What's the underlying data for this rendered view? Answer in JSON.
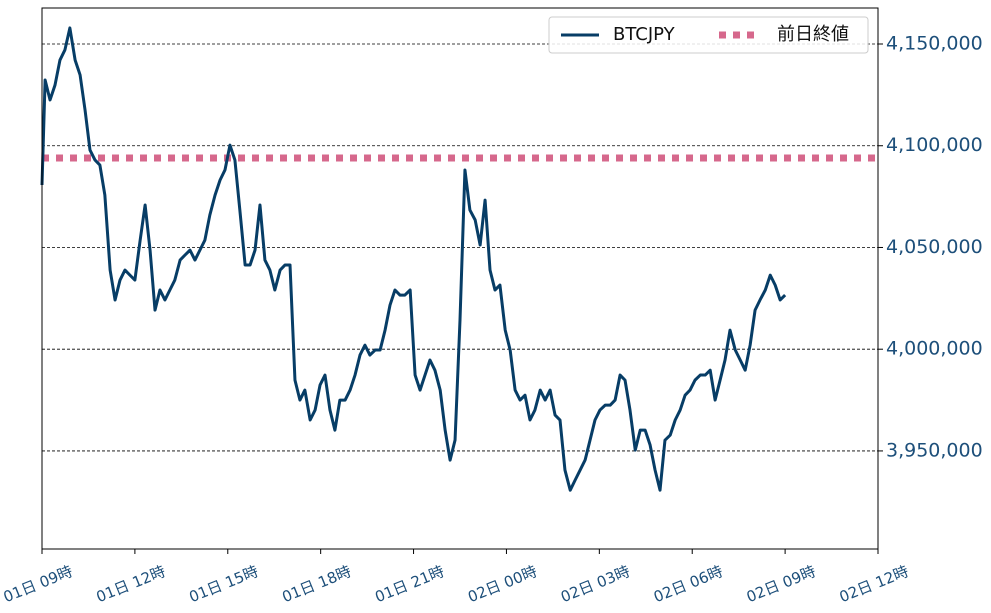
{
  "chart_data": {
    "type": "line",
    "x": [
      0,
      0.1,
      0.26,
      0.42,
      0.58,
      0.74,
      0.9,
      1.07,
      1.23,
      1.39,
      1.55,
      1.71,
      1.87,
      2.03,
      2.2,
      2.36,
      2.52,
      2.68,
      2.84,
      3.0,
      3.17,
      3.33,
      3.49,
      3.65,
      3.81,
      3.97,
      4.13,
      4.29,
      4.46,
      4.62,
      4.78,
      4.94,
      5.1,
      5.26,
      5.42,
      5.59,
      5.75,
      5.91,
      6.07,
      6.23,
      6.39,
      6.56,
      6.72,
      6.88,
      7.04,
      7.2,
      7.36,
      7.52,
      7.69,
      7.85,
      8.01,
      8.17,
      8.33,
      8.49,
      8.66,
      8.82,
      8.98,
      9.14,
      9.3,
      9.46,
      9.62,
      9.79,
      9.95,
      10.11,
      10.27,
      10.43,
      10.59,
      10.76,
      10.92,
      11.08,
      11.24,
      11.4,
      11.56,
      11.72,
      11.89,
      12.05,
      12.21,
      12.37,
      12.53,
      12.69,
      12.86,
      13.02,
      13.18,
      13.34,
      13.5,
      13.66,
      13.82,
      13.99,
      14.15,
      14.31,
      14.47,
      14.63,
      14.79,
      14.96,
      15.12,
      15.28,
      15.44,
      15.6,
      15.76,
      15.92,
      16.09,
      16.25,
      16.41,
      16.57,
      16.73,
      16.89,
      17.06,
      17.22,
      17.38,
      17.54,
      17.7,
      17.86,
      18.02,
      18.19,
      18.35,
      18.51,
      18.67,
      18.83,
      18.99,
      19.16,
      19.32,
      19.48,
      19.64,
      19.8,
      19.96,
      20.12,
      20.29,
      20.45,
      20.61,
      20.77,
      20.93,
      21.09,
      21.26,
      21.42,
      21.58,
      21.74,
      21.9,
      22.06,
      22.22,
      22.39,
      22.55,
      22.71,
      22.87,
      23.03,
      23.19,
      23.36,
      23.52,
      23.68,
      23.84,
      24.0
    ],
    "series": [
      {
        "name": "BTCJPY",
        "color": "#073d66",
        "values": [
          4080700,
          4132300,
          4122500,
          4129800,
          4142100,
          4147100,
          4157900,
          4142100,
          4134800,
          4117600,
          4097900,
          4093000,
          4090500,
          4075800,
          4038900,
          4024200,
          4034000,
          4038900,
          4036400,
          4034000,
          4053600,
          4070900,
          4048700,
          4019200,
          4029100,
          4024200,
          4029100,
          4034000,
          4043800,
          4046300,
          4048700,
          4043800,
          4048700,
          4053600,
          4065900,
          4075800,
          4083100,
          4088100,
          4100300,
          4093000,
          4068400,
          4041400,
          4041400,
          4048700,
          4070900,
          4043800,
          4038900,
          4029100,
          4038900,
          4041400,
          4041400,
          3984800,
          3975000,
          3979900,
          3965200,
          3970100,
          3982400,
          3987300,
          3970100,
          3960200,
          3975000,
          3975000,
          3979900,
          3987300,
          3997100,
          4002000,
          3997100,
          3999600,
          3999600,
          4009400,
          4021700,
          4029100,
          4026600,
          4026600,
          4029100,
          3987300,
          3979900,
          3987300,
          3994700,
          3989700,
          3979900,
          3960200,
          3945500,
          3955300,
          4014300,
          4088100,
          4068400,
          4063500,
          4051200,
          4073300,
          4038900,
          4029100,
          4031500,
          4009400,
          3999600,
          3979900,
          3975000,
          3977400,
          3965200,
          3970100,
          3979900,
          3975000,
          3979900,
          3967600,
          3965200,
          3940600,
          3930700,
          3935700,
          3940600,
          3945500,
          3955300,
          3965200,
          3970100,
          3972500,
          3972500,
          3975000,
          3987300,
          3984800,
          3970100,
          3950400,
          3960200,
          3960200,
          3952900,
          3940600,
          3930700,
          3955300,
          3957800,
          3965200,
          3970100,
          3977400,
          3979900,
          3984800,
          3987300,
          3987300,
          3989700,
          3975000,
          3984800,
          3994700,
          4009400,
          3999600,
          3994700,
          3989700,
          4002000,
          4019200,
          4024200,
          4029100,
          4036400,
          4031500,
          4024200,
          4026600
        ]
      }
    ],
    "hlines": [
      {
        "name": "前日終値",
        "value": 4094000,
        "color": "#d6688c"
      }
    ],
    "xlim": [
      0,
      27
    ],
    "xticks": [
      {
        "value": 0,
        "label": "01日 09時"
      },
      {
        "value": 3,
        "label": "01日 12時"
      },
      {
        "value": 6,
        "label": "01日 15時"
      },
      {
        "value": 9,
        "label": "01日 18時"
      },
      {
        "value": 12,
        "label": "01日 21時"
      },
      {
        "value": 15,
        "label": "02日 00時"
      },
      {
        "value": 18,
        "label": "02日 03時"
      },
      {
        "value": 21,
        "label": "02日 06時"
      },
      {
        "value": 24,
        "label": "02日 09時"
      },
      {
        "value": 27,
        "label": "02日 12時"
      }
    ],
    "ylim": [
      3901800,
      4167700
    ],
    "yticks": [
      {
        "value": 3950000,
        "label": "3,950,000"
      },
      {
        "value": 4000000,
        "label": "4,000,000"
      },
      {
        "value": 4050000,
        "label": "4,050,000"
      },
      {
        "value": 4100000,
        "label": "4,100,000"
      },
      {
        "value": 4150000,
        "label": "4,150,000"
      }
    ],
    "grid": true,
    "legend": "upper right"
  }
}
